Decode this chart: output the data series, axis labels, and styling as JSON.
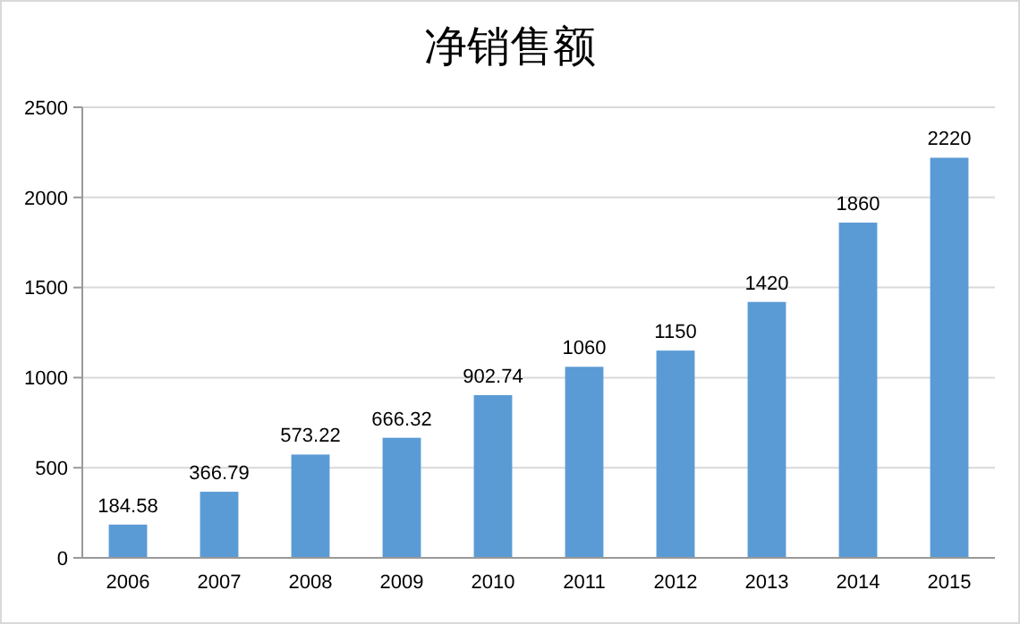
{
  "chart_data": {
    "type": "bar",
    "title": "净销售额",
    "categories": [
      "2006",
      "2007",
      "2008",
      "2009",
      "2010",
      "2011",
      "2012",
      "2013",
      "2014",
      "2015"
    ],
    "values": [
      184.58,
      366.79,
      573.22,
      666.32,
      902.74,
      1060,
      1150,
      1420,
      1860,
      2220
    ],
    "color": "#5b9bd5",
    "ylim": [
      0,
      2500
    ],
    "yticks": [
      0,
      500,
      1000,
      1500,
      2000,
      2500
    ],
    "grid": "y",
    "data_labels": true
  }
}
